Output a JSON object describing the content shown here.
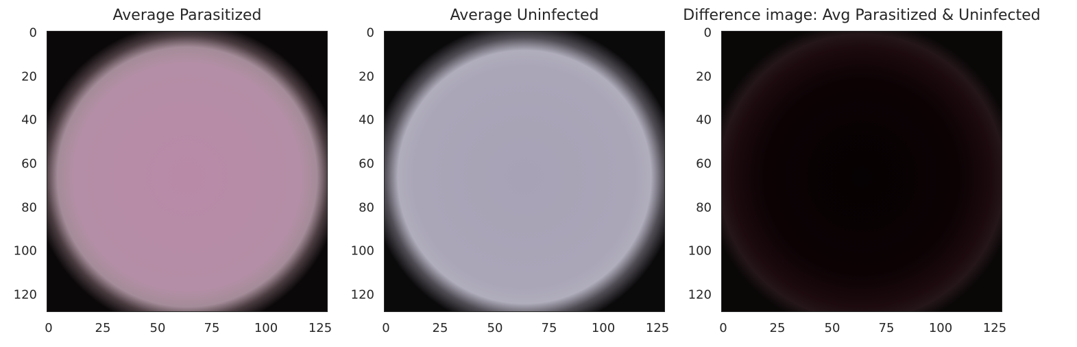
{
  "chart_data": [
    {
      "type": "image",
      "title": "Average Parasitized",
      "xlim": [
        0,
        128
      ],
      "ylim": [
        128,
        0
      ],
      "xticks": [
        "0",
        "25",
        "50",
        "75",
        "100",
        "125"
      ],
      "yticks": [
        "0",
        "20",
        "40",
        "60",
        "80",
        "100",
        "120"
      ],
      "center_color": "#b98aa8",
      "edge_color": "#0b0809"
    },
    {
      "type": "image",
      "title": "Average Uninfected",
      "xlim": [
        0,
        128
      ],
      "ylim": [
        128,
        0
      ],
      "xticks": [
        "0",
        "25",
        "50",
        "75",
        "100",
        "125"
      ],
      "yticks": [
        "0",
        "20",
        "40",
        "60",
        "80",
        "100",
        "120"
      ],
      "center_color": "#a7a2b5",
      "edge_color": "#0b0a0b"
    },
    {
      "type": "image",
      "title": "Difference image: Avg Parasitized & Uninfected",
      "xlim": [
        0,
        128
      ],
      "ylim": [
        128,
        0
      ],
      "xticks": [
        "0",
        "25",
        "50",
        "75",
        "100",
        "125"
      ],
      "yticks": [
        "0",
        "20",
        "40",
        "60",
        "80",
        "100",
        "120"
      ],
      "center_color": "#0a0204",
      "edge_color": "#1a0a0e"
    }
  ]
}
